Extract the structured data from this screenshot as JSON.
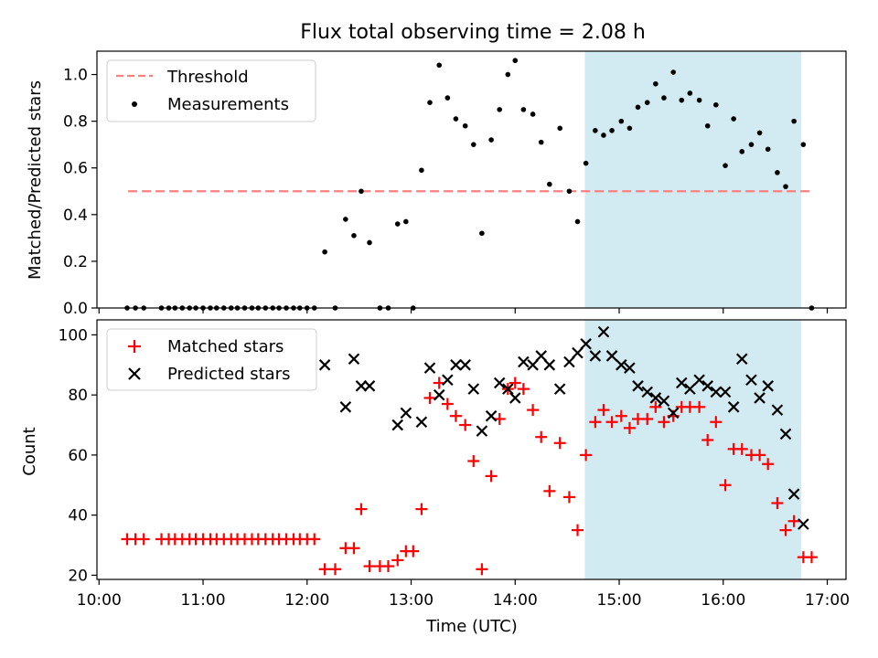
{
  "title": "Flux total observing time = 2.08 h",
  "colors": {
    "threshold": "#ff7f7f",
    "measurements": "#000000",
    "matched": "#ff0000",
    "predicted": "#000000",
    "observing_window": "#add8e6"
  },
  "chart_data": [
    {
      "type": "scatter",
      "ylabel": "Matched/Predicted stars",
      "xlabel": "",
      "ylim": [
        0,
        1.1
      ],
      "yticks": [
        0.0,
        0.2,
        0.4,
        0.6,
        0.8,
        1.0
      ],
      "ytick_labels": [
        "0.0",
        "0.2",
        "0.4",
        "0.6",
        "0.8",
        "1.0"
      ],
      "xlim_hours": [
        9.98,
        17.18
      ],
      "observing_window_hours": [
        14.67,
        16.75
      ],
      "threshold": {
        "name": "Threshold",
        "value": 0.5,
        "x_range_hours": [
          10.28,
          16.85
        ]
      },
      "legend": {
        "position": "upper-left",
        "entries": [
          "Threshold",
          "Measurements"
        ]
      },
      "series": [
        {
          "name": "Measurements",
          "marker": "dot",
          "x_hours": [
            10.27,
            10.35,
            10.43,
            10.6,
            10.67,
            10.73,
            10.8,
            10.87,
            10.93,
            11.0,
            11.07,
            11.13,
            11.2,
            11.27,
            11.33,
            11.4,
            11.47,
            11.53,
            11.6,
            11.67,
            11.73,
            11.8,
            11.87,
            11.93,
            12.0,
            12.07,
            12.17,
            12.27,
            12.37,
            12.45,
            12.52,
            12.6,
            12.7,
            12.78,
            12.87,
            12.95,
            13.02,
            13.1,
            13.18,
            13.27,
            13.35,
            13.43,
            13.52,
            13.6,
            13.68,
            13.77,
            13.85,
            13.93,
            14.0,
            14.08,
            14.17,
            14.25,
            14.33,
            14.43,
            14.52,
            14.6,
            14.68,
            14.77,
            14.85,
            14.93,
            15.02,
            15.1,
            15.18,
            15.27,
            15.35,
            15.43,
            15.52,
            15.6,
            15.68,
            15.77,
            15.85,
            15.93,
            16.02,
            16.1,
            16.18,
            16.27,
            16.35,
            16.43,
            16.52,
            16.6,
            16.68,
            16.77,
            16.85
          ],
          "values": [
            0,
            0,
            0,
            0,
            0,
            0,
            0,
            0,
            0,
            0,
            0,
            0,
            0,
            0,
            0,
            0,
            0,
            0,
            0,
            0,
            0,
            0,
            0,
            0,
            0,
            0,
            0.24,
            0,
            0.38,
            0.31,
            0.5,
            0.28,
            0,
            0,
            0.36,
            0.37,
            0,
            0.59,
            0.88,
            1.04,
            0.9,
            0.81,
            0.78,
            0.7,
            0.32,
            0.72,
            0.85,
            1.0,
            1.06,
            0.85,
            0.83,
            0.71,
            0.53,
            0.77,
            0.5,
            0.37,
            0.62,
            0.76,
            0.74,
            0.76,
            0.8,
            0.77,
            0.86,
            0.88,
            0.96,
            0.9,
            1.01,
            0.89,
            0.92,
            0.89,
            0.78,
            0.87,
            0.61,
            0.81,
            0.67,
            0.7,
            0.75,
            0.68,
            0.58,
            0.52,
            0.8,
            0.7,
            0
          ]
        }
      ]
    },
    {
      "type": "scatter",
      "ylabel": "Count",
      "xlabel": "Time (UTC)",
      "ylim": [
        18.6,
        105
      ],
      "yticks": [
        20,
        40,
        60,
        80,
        100
      ],
      "ytick_labels": [
        "20",
        "40",
        "60",
        "80",
        "100"
      ],
      "xlim_hours": [
        9.98,
        17.18
      ],
      "xticks_hours": [
        10,
        11,
        12,
        13,
        14,
        15,
        16,
        17
      ],
      "xtick_labels": [
        "10:00",
        "11:00",
        "12:00",
        "13:00",
        "14:00",
        "15:00",
        "16:00",
        "17:00"
      ],
      "observing_window_hours": [
        14.67,
        16.75
      ],
      "legend": {
        "position": "upper-left",
        "entries": [
          "Matched stars",
          "Predicted stars"
        ]
      },
      "series": [
        {
          "name": "Matched stars",
          "marker": "plus",
          "x_hours": [
            10.27,
            10.35,
            10.43,
            10.6,
            10.67,
            10.73,
            10.8,
            10.87,
            10.93,
            11.0,
            11.07,
            11.13,
            11.2,
            11.27,
            11.33,
            11.4,
            11.47,
            11.53,
            11.6,
            11.67,
            11.73,
            11.8,
            11.87,
            11.93,
            12.0,
            12.07,
            12.17,
            12.27,
            12.37,
            12.45,
            12.52,
            12.6,
            12.7,
            12.78,
            12.87,
            12.95,
            13.02,
            13.1,
            13.18,
            13.27,
            13.35,
            13.43,
            13.52,
            13.6,
            13.68,
            13.77,
            13.85,
            13.93,
            14.0,
            14.08,
            14.17,
            14.25,
            14.33,
            14.43,
            14.52,
            14.6,
            14.68,
            14.77,
            14.85,
            14.93,
            15.02,
            15.1,
            15.18,
            15.27,
            15.35,
            15.43,
            15.52,
            15.6,
            15.68,
            15.77,
            15.85,
            15.93,
            16.02,
            16.1,
            16.18,
            16.27,
            16.35,
            16.43,
            16.52,
            16.6,
            16.68,
            16.77,
            16.85
          ],
          "values": [
            32,
            32,
            32,
            32,
            32,
            32,
            32,
            32,
            32,
            32,
            32,
            32,
            32,
            32,
            32,
            32,
            32,
            32,
            32,
            32,
            32,
            32,
            32,
            32,
            32,
            32,
            22,
            22,
            29,
            29,
            42,
            23,
            23,
            23,
            25,
            28,
            28,
            42,
            79,
            84,
            77,
            73,
            70,
            58,
            22,
            53,
            72,
            82,
            84,
            82,
            75,
            66,
            48,
            64,
            46,
            35,
            60,
            71,
            75,
            71,
            73,
            69,
            72,
            72,
            76,
            71,
            73,
            76,
            76,
            76,
            65,
            71,
            50,
            62,
            62,
            60,
            60,
            57,
            44,
            35,
            38,
            26,
            26
          ]
        },
        {
          "name": "Predicted stars",
          "marker": "x",
          "x_hours": [
            12.17,
            12.37,
            12.45,
            12.52,
            12.6,
            12.87,
            12.95,
            13.1,
            13.18,
            13.27,
            13.35,
            13.43,
            13.52,
            13.6,
            13.68,
            13.77,
            13.85,
            13.93,
            14.0,
            14.08,
            14.17,
            14.25,
            14.33,
            14.43,
            14.52,
            14.6,
            14.68,
            14.77,
            14.85,
            14.93,
            15.02,
            15.1,
            15.18,
            15.27,
            15.35,
            15.43,
            15.52,
            15.6,
            15.68,
            15.77,
            15.85,
            15.93,
            16.02,
            16.1,
            16.18,
            16.27,
            16.35,
            16.43,
            16.52,
            16.6,
            16.68,
            16.77
          ],
          "values": [
            90,
            76,
            92,
            83,
            83,
            70,
            74,
            71,
            89,
            80,
            85,
            90,
            90,
            82,
            68,
            73,
            84,
            82,
            79,
            91,
            90,
            93,
            90,
            82,
            91,
            94,
            97,
            93,
            101,
            93,
            90,
            89,
            83,
            81,
            79,
            78,
            74,
            84,
            82,
            85,
            83,
            81,
            81,
            76,
            92,
            85,
            79,
            83,
            75,
            67,
            47,
            37
          ]
        }
      ]
    }
  ]
}
